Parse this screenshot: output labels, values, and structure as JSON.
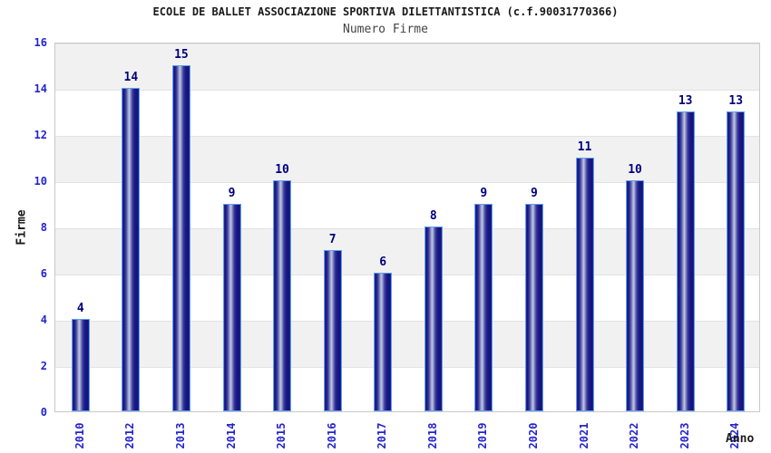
{
  "header": {
    "title": "ECOLE DE BALLET ASSOCIAZIONE SPORTIVA DILETTANTISTICA (c.f.90031770366)",
    "subtitle": "Numero Firme"
  },
  "chart_data": {
    "type": "bar",
    "title": "ECOLE DE BALLET ASSOCIAZIONE SPORTIVA DILETTANTISTICA (c.f.90031770366)",
    "subtitle": "Numero Firme",
    "categories": [
      "2010",
      "2012",
      "2013",
      "2014",
      "2015",
      "2016",
      "2017",
      "2018",
      "2019",
      "2020",
      "2021",
      "2022",
      "2023",
      "2024"
    ],
    "values": [
      4,
      14,
      15,
      9,
      10,
      7,
      6,
      8,
      9,
      9,
      11,
      10,
      13,
      13
    ],
    "xlabel": "Anno",
    "ylabel": "Firme",
    "ylim": [
      0,
      16
    ],
    "yticks": [
      0,
      2,
      4,
      6,
      8,
      10,
      12,
      14,
      16
    ],
    "grid": "horizontal-bands-alternating",
    "legend_position": "none",
    "value_labels_shown": true,
    "x_tick_rotation_degrees": 90,
    "colors": {
      "bar_dark": "#1b1b88",
      "bar_highlight": "#c2c7e5",
      "bar_border": "#5e9ff2",
      "tick_text": "#2424cd",
      "value_label": "#00007a",
      "band_gray": "#f1f1f1",
      "band_white": "#ffffff",
      "plot_border": "#c9c9c9",
      "title_color": "#1a1a1a",
      "subtitle_color": "#444444"
    }
  }
}
